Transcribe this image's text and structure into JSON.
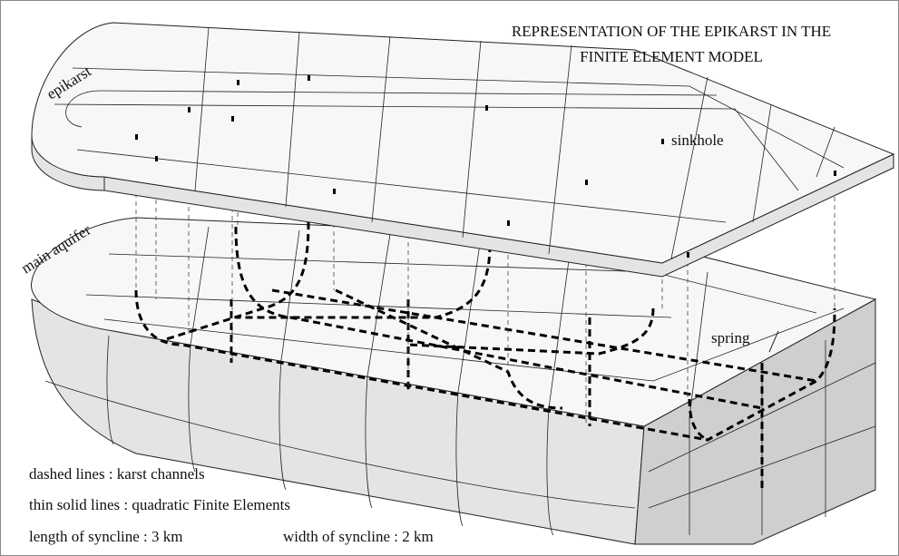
{
  "title": [
    "REPRESENTATION OF THE EPIKARST IN THE",
    "FINITE ELEMENT MODEL"
  ],
  "labels": {
    "epikarst": "epikarst",
    "main_aquifer": "main aquifer",
    "sinkhole": "sinkhole",
    "spring": "spring"
  },
  "legend": [
    "dashed lines :  karst channels",
    "thin solid lines :  quadratic Finite Elements",
    "length of syncline :  3 km",
    "width of syncline :  2 km"
  ]
}
